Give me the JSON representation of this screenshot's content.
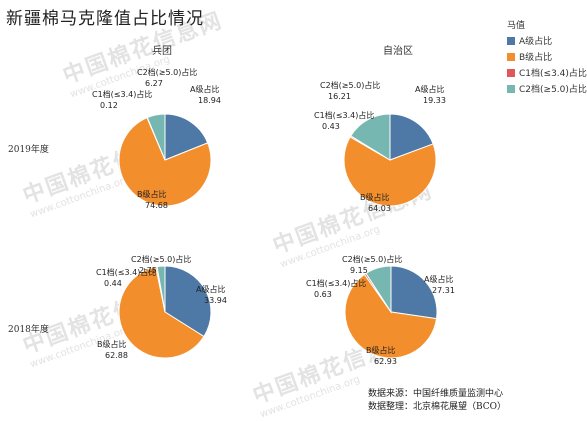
{
  "title": "新疆棉马克隆值占比情况",
  "columns": [
    "兵团",
    "自治区"
  ],
  "rows": [
    "2019年度",
    "2018年度"
  ],
  "legend": {
    "title": "马值",
    "items": [
      {
        "label": "A级占比",
        "color": "#4e79a7"
      },
      {
        "label": "B级占比",
        "color": "#f28e2b"
      },
      {
        "label": "C1档(≤3.4)占比",
        "color": "#e15759"
      },
      {
        "label": "C2档(≥5.0)占比",
        "color": "#76b7b2"
      }
    ]
  },
  "watermark": {
    "cn": "中国棉花信息网",
    "en": "www.cottonchina.org"
  },
  "source": {
    "line1": "数据来源：中国纤维质量监测中心",
    "line2": "数据整理：北京棉花展望（BCO）"
  },
  "chart_data": [
    {
      "type": "pie",
      "row": "2019年度",
      "column": "兵团",
      "labels": [
        "A级占比",
        "B级占比",
        "C1档(≤3.4)占比",
        "C2档(≥5.0)占比"
      ],
      "values": [
        18.94,
        74.68,
        0.12,
        6.27
      ],
      "display_values": [
        "18.94",
        "74.68",
        "0.12",
        "6.27"
      ],
      "colors": [
        "#4e79a7",
        "#f28e2b",
        "#e15759",
        "#76b7b2"
      ]
    },
    {
      "type": "pie",
      "row": "2019年度",
      "column": "自治区",
      "labels": [
        "A级占比",
        "B级占比",
        "C1档(≤3.4)占比",
        "C2档(≥5.0)占比"
      ],
      "values": [
        19.33,
        64.03,
        0.43,
        16.21
      ],
      "display_values": [
        "19.33",
        "64.03",
        "0.43",
        "16.21"
      ],
      "colors": [
        "#4e79a7",
        "#f28e2b",
        "#e15759",
        "#76b7b2"
      ]
    },
    {
      "type": "pie",
      "row": "2018年度",
      "column": "兵团",
      "labels": [
        "A级占比",
        "B级占比",
        "C1档(≤3.4)占比",
        "C2档(≥5.0)占比"
      ],
      "values": [
        33.94,
        62.88,
        0.44,
        2.75
      ],
      "display_values": [
        "33.94",
        "62.88",
        "0.44",
        "2.75"
      ],
      "colors": [
        "#4e79a7",
        "#f28e2b",
        "#e15759",
        "#76b7b2"
      ]
    },
    {
      "type": "pie",
      "row": "2018年度",
      "column": "自治区",
      "labels": [
        "A级占比",
        "B级占比",
        "C1档(≤3.4)占比",
        "C2档(≥5.0)占比"
      ],
      "values": [
        27.31,
        62.93,
        0.63,
        9.15
      ],
      "display_values": [
        "27.31",
        "62.93",
        "0.63",
        "9.15"
      ],
      "colors": [
        "#4e79a7",
        "#f28e2b",
        "#e15759",
        "#76b7b2"
      ]
    }
  ]
}
